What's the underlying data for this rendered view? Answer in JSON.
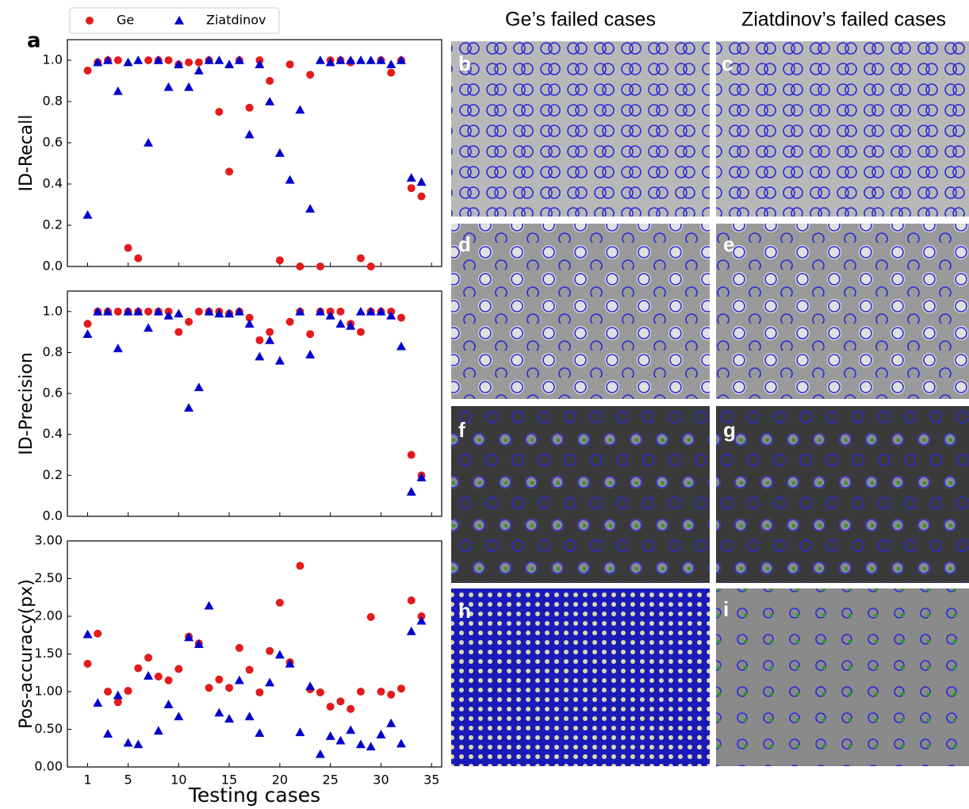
{
  "figure": {
    "panel_label": "a",
    "column_titles": [
      "Ge’s failed cases",
      "Ziatdinov’s failed cases"
    ],
    "image_labels": [
      "b",
      "c",
      "d",
      "e",
      "f",
      "g",
      "h",
      "i"
    ]
  },
  "chart_data": [
    {
      "type": "scatter",
      "ylabel": "ID-Recall",
      "x": [
        1,
        2,
        3,
        4,
        5,
        6,
        7,
        8,
        9,
        10,
        11,
        12,
        13,
        14,
        15,
        16,
        17,
        18,
        19,
        20,
        21,
        22,
        23,
        24,
        25,
        26,
        27,
        28,
        29,
        30,
        31,
        32,
        33,
        34
      ],
      "xlim": [
        -1,
        36
      ],
      "xticks": [
        1,
        5,
        10,
        15,
        20,
        25,
        30,
        35
      ],
      "ylim": [
        0,
        1.1
      ],
      "yticks": [
        {
          "value": 0,
          "label": "0.0"
        },
        0.2,
        0.4,
        0.6,
        0.8,
        {
          "value": 1,
          "label": "1.0"
        }
      ],
      "series": [
        {
          "name": "Ge",
          "color": "#e41a1c",
          "marker": "circle",
          "values": [
            0.95,
            0.99,
            1.0,
            1.0,
            0.09,
            0.04,
            1.0,
            1.0,
            1.0,
            0.98,
            0.99,
            0.99,
            1.0,
            0.75,
            0.46,
            1.0,
            0.77,
            1.0,
            0.9,
            0.03,
            0.98,
            0.0,
            0.93,
            0.0,
            1.0,
            1.0,
            0.99,
            0.04,
            0.0,
            1.0,
            0.94,
            1.0,
            0.38,
            0.34
          ]
        },
        {
          "name": "Ziatdinov",
          "color": "#0000cc",
          "marker": "triangle",
          "values": [
            0.25,
            0.99,
            1.0,
            0.85,
            0.99,
            1.0,
            0.6,
            1.0,
            0.87,
            0.98,
            0.87,
            0.95,
            1.0,
            1.0,
            0.98,
            1.0,
            0.64,
            0.98,
            0.8,
            0.55,
            0.42,
            0.76,
            0.28,
            1.0,
            0.99,
            1.0,
            1.0,
            1.0,
            1.0,
            1.0,
            0.98,
            1.0,
            0.43,
            0.41
          ]
        }
      ]
    },
    {
      "type": "scatter",
      "ylabel": "ID-Precision",
      "x": [
        1,
        2,
        3,
        4,
        5,
        6,
        7,
        8,
        9,
        10,
        11,
        12,
        13,
        14,
        15,
        16,
        17,
        18,
        19,
        20,
        21,
        22,
        23,
        24,
        25,
        26,
        27,
        28,
        29,
        30,
        31,
        32,
        33,
        34
      ],
      "xlim": [
        -1,
        36
      ],
      "xticks": [
        1,
        5,
        10,
        15,
        20,
        25,
        30,
        35
      ],
      "ylim": [
        0,
        1.1
      ],
      "yticks": [
        {
          "value": 0,
          "label": "0.0"
        },
        0.2,
        0.4,
        0.6,
        0.8,
        {
          "value": 1,
          "label": "1.0"
        }
      ],
      "series": [
        {
          "color": "#e41a1c",
          "marker": "circle",
          "values": [
            0.94,
            1.0,
            1.0,
            1.0,
            1.0,
            1.0,
            1.0,
            1.0,
            1.0,
            0.9,
            0.95,
            1.0,
            1.0,
            1.0,
            0.99,
            1.0,
            0.97,
            0.86,
            0.9,
            null,
            0.95,
            1.0,
            0.89,
            1.0,
            1.0,
            1.0,
            0.94,
            0.9,
            1.0,
            1.0,
            1.0,
            0.97,
            0.3,
            0.2
          ]
        },
        {
          "color": "#0000cc",
          "marker": "triangle",
          "values": [
            0.89,
            1.0,
            1.0,
            0.82,
            1.0,
            1.0,
            0.92,
            1.0,
            0.98,
            0.99,
            0.53,
            0.63,
            1.0,
            0.99,
            0.99,
            1.0,
            0.94,
            0.78,
            0.86,
            0.76,
            null,
            1.0,
            0.79,
            1.0,
            0.98,
            0.94,
            0.93,
            1.0,
            1.0,
            1.0,
            0.98,
            0.83,
            0.12,
            0.19
          ]
        }
      ]
    },
    {
      "type": "scatter",
      "ylabel": "Pos-accuracy(px)",
      "xlabel": "Testing cases",
      "x": [
        1,
        2,
        3,
        4,
        5,
        6,
        7,
        8,
        9,
        10,
        11,
        12,
        13,
        14,
        15,
        16,
        17,
        18,
        19,
        20,
        21,
        22,
        23,
        24,
        25,
        26,
        27,
        28,
        29,
        30,
        31,
        32,
        33,
        34
      ],
      "xlim": [
        -1,
        36
      ],
      "xticks": [
        1,
        5,
        10,
        15,
        20,
        25,
        30,
        35
      ],
      "ylim": [
        0,
        3
      ],
      "yticks": [
        {
          "value": 0,
          "label": "0.00"
        },
        {
          "value": 0.5,
          "label": "0.50"
        },
        {
          "value": 1,
          "label": "1.00"
        },
        {
          "value": 1.5,
          "label": "1.50"
        },
        {
          "value": 2,
          "label": "2.00"
        },
        {
          "value": 2.5,
          "label": "2.50"
        },
        {
          "value": 3,
          "label": "3.00"
        }
      ],
      "series": [
        {
          "color": "#e41a1c",
          "marker": "circle",
          "values": [
            1.37,
            1.77,
            1.0,
            0.86,
            1.01,
            1.31,
            1.45,
            1.2,
            1.15,
            1.3,
            1.73,
            1.64,
            1.05,
            1.16,
            1.05,
            1.58,
            1.29,
            0.99,
            1.54,
            2.18,
            1.39,
            2.67,
            1.03,
            0.99,
            0.8,
            0.87,
            0.77,
            1.0,
            1.99,
            1.0,
            0.96,
            1.04,
            2.21,
            2.0
          ]
        },
        {
          "color": "#0000cc",
          "marker": "triangle",
          "values": [
            1.76,
            0.85,
            0.44,
            0.95,
            0.32,
            0.3,
            1.21,
            0.48,
            0.83,
            0.67,
            1.72,
            1.63,
            2.14,
            0.72,
            0.64,
            1.15,
            0.67,
            0.45,
            1.12,
            1.49,
            1.37,
            0.46,
            1.07,
            0.17,
            0.41,
            0.35,
            0.49,
            0.3,
            0.27,
            0.43,
            0.58,
            0.31,
            1.8,
            1.94
          ]
        }
      ]
    }
  ]
}
